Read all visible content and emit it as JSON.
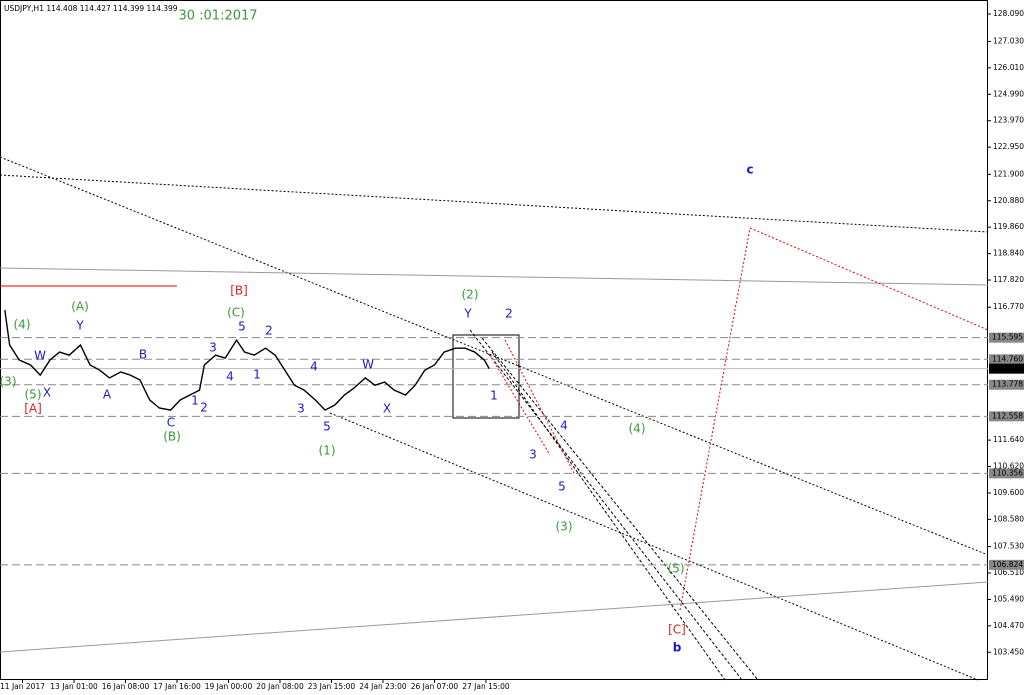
{
  "chart_data": {
    "type": "line",
    "header": "USDJPY,H1  114.408 114.427 114.399 114.399",
    "date_note": "30 :01:2017",
    "series": [
      {
        "name": "USDJPY",
        "color": "#000000",
        "x": [
          3,
          6,
          12,
          19,
          25,
          31,
          37,
          43,
          50,
          56,
          62,
          68,
          75,
          81,
          87,
          93,
          99,
          106,
          112,
          118,
          124,
          127,
          134,
          140,
          147,
          152,
          158,
          165,
          171,
          177,
          183,
          189,
          196,
          202,
          208,
          214,
          220,
          227,
          233,
          239,
          245,
          252,
          258,
          264,
          270,
          276,
          283,
          289,
          295,
          301,
          304
        ],
        "values": [
          116.66,
          115.31,
          114.73,
          114.54,
          114.15,
          114.73,
          115.04,
          114.92,
          115.31,
          114.54,
          114.34,
          114.04,
          114.27,
          114.15,
          113.96,
          113.19,
          112.88,
          112.8,
          113.19,
          113.38,
          113.57,
          114.54,
          114.92,
          114.81,
          115.5,
          115.04,
          114.92,
          115.19,
          114.92,
          114.34,
          113.76,
          113.57,
          113.19,
          112.8,
          112.99,
          113.38,
          113.65,
          114.04,
          113.76,
          113.88,
          113.57,
          113.38,
          113.76,
          114.34,
          114.54,
          115.04,
          115.19,
          115.19,
          115.04,
          114.73,
          114.399
        ]
      }
    ],
    "xlim": [
      0,
      614
    ],
    "ylim": [
      102.38,
      128.63
    ],
    "xticks": [
      {
        "value": 14,
        "label": "11 Jan 2017"
      },
      {
        "value": 46,
        "label": "13 Jan 01:00"
      },
      {
        "value": 78,
        "label": "16 Jan 08:00"
      },
      {
        "value": 110,
        "label": "17 Jan 16:00"
      },
      {
        "value": 142,
        "label": "19 Jan 00:00"
      },
      {
        "value": 174,
        "label": "20 Jan 08:00"
      },
      {
        "value": 206,
        "label": "23 Jan 15:00"
      },
      {
        "value": 238,
        "label": "24 Jan 23:00"
      },
      {
        "value": 270,
        "label": "26 Jan 07:00"
      },
      {
        "value": 302,
        "label": "27 Jan 15:00"
      }
    ],
    "yticks": [
      {
        "value": 128.09,
        "label": "128.090"
      },
      {
        "value": 127.03,
        "label": "127.030"
      },
      {
        "value": 126.01,
        "label": "126.010"
      },
      {
        "value": 124.99,
        "label": "124.990"
      },
      {
        "value": 123.97,
        "label": "123.970"
      },
      {
        "value": 122.95,
        "label": "122.950"
      },
      {
        "value": 121.9,
        "label": "121.900"
      },
      {
        "value": 120.88,
        "label": "120.880"
      },
      {
        "value": 119.86,
        "label": "119.860"
      },
      {
        "value": 118.84,
        "label": "118.840"
      },
      {
        "value": 117.82,
        "label": "117.820"
      },
      {
        "value": 116.77,
        "label": "116.770"
      },
      {
        "value": 111.64,
        "label": "111.640"
      },
      {
        "value": 110.62,
        "label": "110.620"
      },
      {
        "value": 109.6,
        "label": "109.600"
      },
      {
        "value": 108.58,
        "label": "108.580"
      },
      {
        "value": 107.53,
        "label": "107.530"
      },
      {
        "value": 106.51,
        "label": "106.510"
      },
      {
        "value": 105.49,
        "label": "105.490"
      },
      {
        "value": 104.47,
        "label": "104.470"
      },
      {
        "value": 103.45,
        "label": "103.450"
      }
    ],
    "levels": [
      {
        "value": 115.595,
        "label": "115.595"
      },
      {
        "value": 114.76,
        "label": "114.760"
      },
      {
        "value": 113.778,
        "label": "113.778"
      },
      {
        "value": 112.558,
        "label": "112.558"
      },
      {
        "value": 110.356,
        "label": "110.356"
      },
      {
        "value": 106.824,
        "label": "106.824"
      }
    ],
    "current": {
      "value": 114.399,
      "label": "114.399"
    },
    "annotations": [
      "(3)",
      "(4)",
      "(A)",
      "(5)",
      "(C)",
      "(B)",
      "(1)",
      "(2)",
      "(4)",
      "(3)",
      "(5)",
      "W",
      "Y",
      "X",
      "A",
      "B",
      "C",
      "1",
      "2",
      "3",
      "4",
      "5",
      "2",
      "1",
      "4",
      "3",
      "5",
      "W",
      "X",
      "Y",
      "2",
      "1",
      "4",
      "3",
      "5",
      "c",
      "b",
      "[B]",
      "[A]",
      "[C]"
    ]
  }
}
